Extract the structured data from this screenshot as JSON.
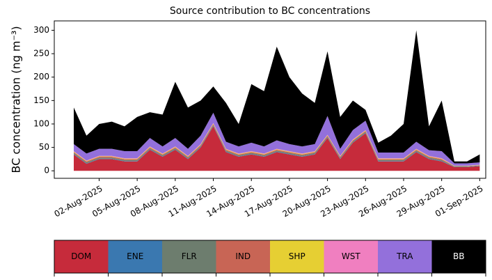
{
  "chart_data": {
    "type": "stacked_area",
    "title": "Source contribution to BC concentrations",
    "y_label": "BC concentration (ng m⁻³)",
    "x": [
      "31-Jul-2025",
      "01-Aug-2025",
      "02-Aug-2025",
      "03-Aug-2025",
      "04-Aug-2025",
      "05-Aug-2025",
      "06-Aug-2025",
      "07-Aug-2025",
      "08-Aug-2025",
      "09-Aug-2025",
      "10-Aug-2025",
      "11-Aug-2025",
      "12-Aug-2025",
      "13-Aug-2025",
      "14-Aug-2025",
      "15-Aug-2025",
      "16-Aug-2025",
      "17-Aug-2025",
      "18-Aug-2025",
      "19-Aug-2025",
      "20-Aug-2025",
      "21-Aug-2025",
      "22-Aug-2025",
      "23-Aug-2025",
      "24-Aug-2025",
      "25-Aug-2025",
      "26-Aug-2025",
      "27-Aug-2025",
      "28-Aug-2025",
      "29-Aug-2025",
      "30-Aug-2025",
      "31-Aug-2025",
      "01-Sep-2025"
    ],
    "xticks": [
      "02-Aug-2025",
      "05-Aug-2025",
      "08-Aug-2025",
      "11-Aug-2025",
      "14-Aug-2025",
      "17-Aug-2025",
      "20-Aug-2025",
      "23-Aug-2025",
      "26-Aug-2025",
      "29-Aug-2025",
      "01-Sep-2025"
    ],
    "ylim": [
      -16,
      320
    ],
    "yticks": [
      0,
      50,
      100,
      150,
      200,
      250,
      300
    ],
    "series": [
      {
        "name": "DOM",
        "color": "#c62b3b",
        "values": [
          35,
          15,
          25,
          25,
          20,
          20,
          45,
          30,
          45,
          25,
          50,
          95,
          40,
          30,
          35,
          30,
          40,
          35,
          30,
          35,
          70,
          25,
          60,
          80,
          20,
          20,
          20,
          40,
          25,
          20,
          8,
          8,
          10
        ]
      },
      {
        "name": "ENE",
        "color": "#3a78b0",
        "values": [
          1,
          1,
          1,
          1,
          1,
          1,
          1,
          1,
          1,
          1,
          1,
          1,
          1,
          1,
          1,
          1,
          1,
          1,
          1,
          1,
          1,
          1,
          1,
          1,
          1,
          1,
          1,
          1,
          1,
          1,
          0.5,
          0.5,
          0.5
        ]
      },
      {
        "name": "FLR",
        "color": "#6d7d6e",
        "values": [
          2,
          2,
          2,
          2,
          2,
          2,
          2,
          2,
          2,
          2,
          2,
          2,
          2,
          2,
          2,
          2,
          2,
          2,
          2,
          2,
          2,
          2,
          2,
          2,
          2,
          2,
          2,
          2,
          2,
          2,
          1,
          1,
          1
        ]
      },
      {
        "name": "IND",
        "color": "#c86555",
        "values": [
          2,
          2,
          2,
          2,
          2,
          2,
          2,
          2,
          2,
          2,
          2,
          2,
          2,
          2,
          2,
          2,
          2,
          2,
          2,
          2,
          2,
          2,
          2,
          2,
          2,
          2,
          2,
          2,
          2,
          2,
          0.5,
          0.5,
          0.5
        ]
      },
      {
        "name": "SHP",
        "color": "#e6cf33",
        "values": [
          1,
          1,
          1,
          1,
          1,
          1,
          1,
          1,
          1,
          1,
          1,
          1,
          1,
          1,
          1,
          1,
          1,
          1,
          1,
          1,
          1,
          1,
          1,
          1,
          1,
          1,
          1,
          1,
          1,
          1,
          0.5,
          0.5,
          0.5
        ]
      },
      {
        "name": "WST",
        "color": "#f07fc0",
        "values": [
          1,
          1,
          1,
          1,
          1,
          1,
          1,
          1,
          1,
          1,
          1,
          1,
          1,
          1,
          1,
          1,
          1,
          1,
          1,
          1,
          1,
          1,
          1,
          1,
          1,
          1,
          1,
          1,
          1,
          1,
          0.5,
          0.5,
          0.5
        ]
      },
      {
        "name": "TRA",
        "color": "#9370db",
        "values": [
          15,
          15,
          15,
          15,
          15,
          15,
          18,
          15,
          18,
          15,
          18,
          22,
          15,
          15,
          18,
          15,
          18,
          15,
          15,
          15,
          40,
          15,
          20,
          20,
          12,
          12,
          12,
          15,
          12,
          15,
          5,
          5,
          5
        ]
      },
      {
        "name": "BB",
        "color": "#000000",
        "values": [
          78,
          38,
          53,
          58,
          53,
          73,
          55,
          68,
          120,
          88,
          75,
          56,
          83,
          48,
          125,
          118,
          200,
          143,
          113,
          88,
          138,
          68,
          63,
          23,
          21,
          36,
          61,
          238,
          51,
          108,
          4,
          4,
          17
        ]
      }
    ]
  }
}
